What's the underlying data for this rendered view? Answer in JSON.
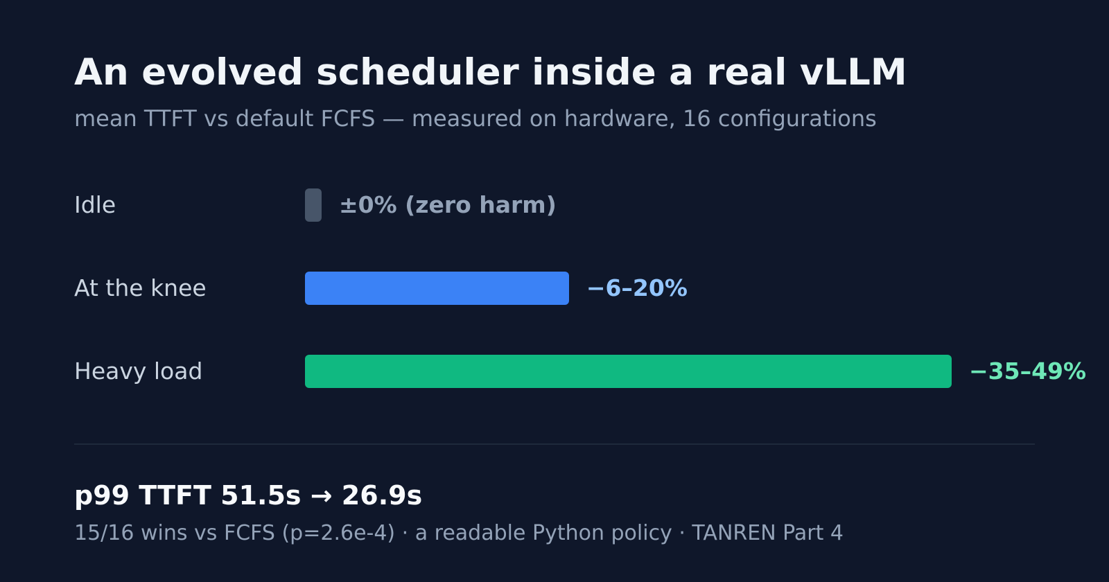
{
  "chart_data": {
    "type": "bar",
    "orientation": "horizontal",
    "title": "An evolved scheduler inside a real vLLM",
    "subtitle": "mean TTFT vs default FCFS — measured on hardware, 16 configurations",
    "categories": [
      "Idle",
      "At the knee",
      "Heavy load"
    ],
    "values": [
      0,
      20,
      49
    ],
    "value_labels": [
      "±0% (zero harm)",
      "−6–20%",
      "−35–49%"
    ],
    "ranges": [
      [
        0,
        0
      ],
      [
        6,
        20
      ],
      [
        35,
        49
      ]
    ],
    "xlim": [
      0,
      49
    ],
    "grid": false,
    "bar_colors": [
      "#475569",
      "#3b82f6",
      "#10b981"
    ],
    "label_colors": [
      "#94a3b8",
      "#93c5fd",
      "#6ee7b7"
    ]
  },
  "summary": {
    "headline": "p99 TTFT 51.5s → 26.9s",
    "footnote": "15/16 wins vs FCFS (p=2.6e-4) · a readable Python policy · TANREN Part 4"
  },
  "colors": {
    "background": "#0f172a",
    "divider": "#1e293b"
  }
}
